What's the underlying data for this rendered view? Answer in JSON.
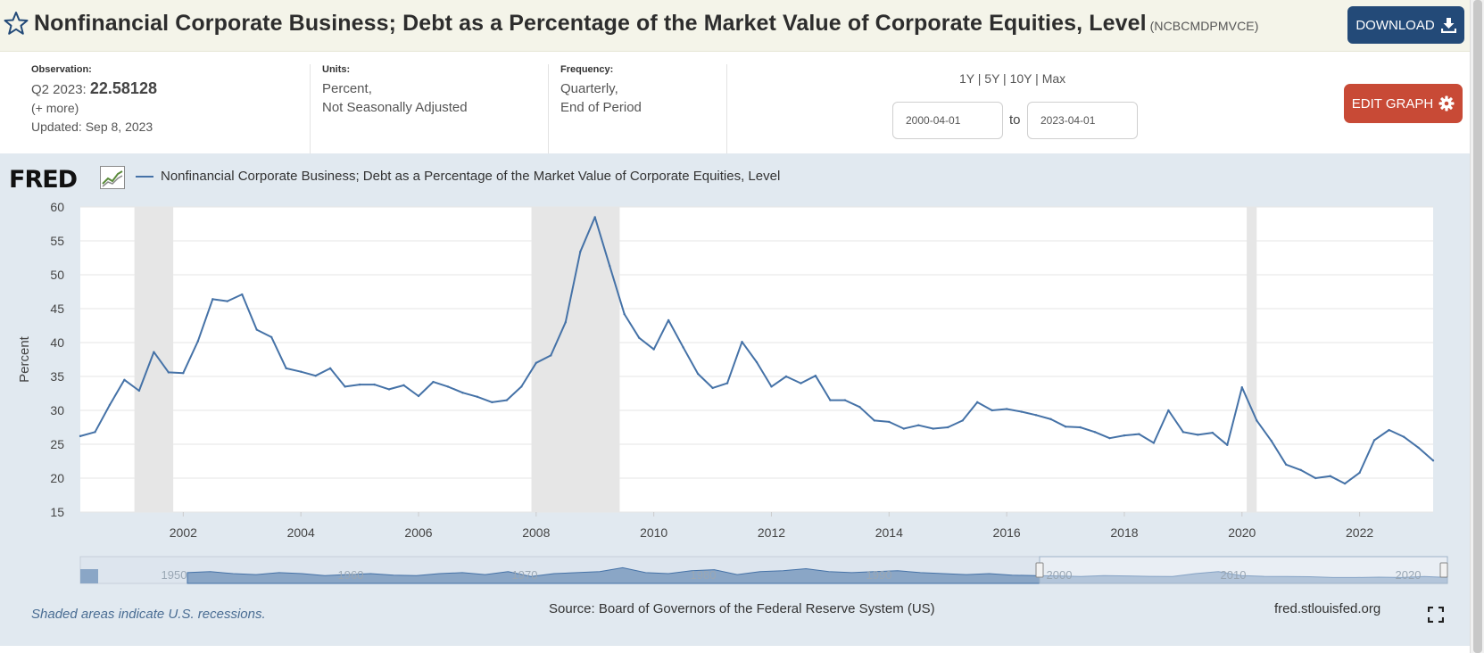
{
  "header": {
    "title": "Nonfinancial Corporate Business; Debt as a Percentage of the Market Value of Corporate Equities, Level",
    "series_id": "(NCBCMDPMVCE)",
    "download_label": "DOWNLOAD",
    "star_icon": "star-outline-icon",
    "download_icon": "download-icon"
  },
  "meta": {
    "observation_label": "Observation:",
    "observation_period": "Q2 2023:",
    "observation_value": "22.58128",
    "more_label": "(+ more)",
    "updated": "Updated: Sep 8, 2023",
    "units_label": "Units:",
    "units_line1": "Percent,",
    "units_line2": "Not Seasonally Adjusted",
    "frequency_label": "Frequency:",
    "frequency_line1": "Quarterly,",
    "frequency_line2": "End of Period"
  },
  "range": {
    "links": [
      "1Y",
      "5Y",
      "10Y",
      "Max"
    ],
    "start_date": "2000-04-01",
    "to_label": "to",
    "end_date": "2023-04-01"
  },
  "edit_graph_label": "EDIT GRAPH",
  "edit_graph_icon": "gear-icon",
  "fred_logo_text": "FRED",
  "footer": {
    "recession_note": "Shaded areas indicate U.S. recessions.",
    "source": "Source: Board of Governors of the Federal Reserve System (US)",
    "url": "fred.stlouisfed.org",
    "fullscreen_icon": "fullscreen-icon"
  },
  "colors": {
    "series_line": "#4572a7",
    "recession_shade": "#e6e6e6",
    "plot_bg": "#ffffff",
    "chart_bg": "#e1e9f0",
    "download_btn": "#234a78",
    "edit_btn": "#c84a36"
  },
  "chart_data": {
    "type": "line",
    "title": "",
    "xlabel": "",
    "ylabel": "Percent",
    "ylim": [
      15,
      60
    ],
    "yticks": [
      15,
      20,
      25,
      30,
      35,
      40,
      45,
      50,
      55,
      60
    ],
    "xlim": [
      2000.25,
      2023.25
    ],
    "xticks": [
      2002,
      2004,
      2006,
      2008,
      2010,
      2012,
      2014,
      2016,
      2018,
      2020,
      2022
    ],
    "grid": true,
    "legend_position": "top-left",
    "recessions": [
      [
        2001.17,
        2001.83
      ],
      [
        2007.92,
        2009.42
      ],
      [
        2020.08,
        2020.25
      ]
    ],
    "navigator_labels": [
      "1950",
      "1960",
      "1970",
      "1980",
      "1990",
      "2000",
      "2010",
      "2020"
    ],
    "series": [
      {
        "name": "Nonfinancial Corporate Business; Debt as a Percentage of the Market Value of Corporate Equities, Level",
        "x": [
          2000.25,
          2000.5,
          2000.75,
          2001.0,
          2001.25,
          2001.5,
          2001.75,
          2002.0,
          2002.25,
          2002.5,
          2002.75,
          2003.0,
          2003.25,
          2003.5,
          2003.75,
          2004.0,
          2004.25,
          2004.5,
          2004.75,
          2005.0,
          2005.25,
          2005.5,
          2005.75,
          2006.0,
          2006.25,
          2006.5,
          2006.75,
          2007.0,
          2007.25,
          2007.5,
          2007.75,
          2008.0,
          2008.25,
          2008.5,
          2008.75,
          2009.0,
          2009.25,
          2009.5,
          2009.75,
          2010.0,
          2010.25,
          2010.5,
          2010.75,
          2011.0,
          2011.25,
          2011.5,
          2011.75,
          2012.0,
          2012.25,
          2012.5,
          2012.75,
          2013.0,
          2013.25,
          2013.5,
          2013.75,
          2014.0,
          2014.25,
          2014.5,
          2014.75,
          2015.0,
          2015.25,
          2015.5,
          2015.75,
          2016.0,
          2016.25,
          2016.5,
          2016.75,
          2017.0,
          2017.25,
          2017.5,
          2017.75,
          2018.0,
          2018.25,
          2018.5,
          2018.75,
          2019.0,
          2019.25,
          2019.5,
          2019.75,
          2020.0,
          2020.25,
          2020.5,
          2020.75,
          2021.0,
          2021.25,
          2021.5,
          2021.75,
          2022.0,
          2022.25,
          2022.5,
          2022.75,
          2023.0,
          2023.25
        ],
        "values": [
          26.2,
          26.8,
          30.8,
          34.5,
          32.9,
          38.6,
          35.6,
          35.5,
          40.2,
          46.4,
          46.1,
          47.1,
          41.9,
          40.8,
          36.2,
          35.7,
          35.1,
          36.2,
          33.5,
          33.8,
          33.8,
          33.1,
          33.7,
          32.1,
          34.2,
          33.5,
          32.6,
          32.0,
          31.2,
          31.5,
          33.5,
          37.0,
          38.1,
          43.0,
          53.4,
          58.5,
          51.3,
          44.2,
          40.7,
          39.0,
          43.3,
          39.3,
          35.4,
          33.3,
          34.0,
          40.1,
          37.1,
          33.5,
          35.0,
          34.0,
          35.1,
          31.5,
          31.5,
          30.5,
          28.5,
          28.3,
          27.3,
          27.8,
          27.3,
          27.5,
          28.5,
          31.2,
          30.0,
          30.2,
          29.8,
          29.3,
          28.7,
          27.6,
          27.5,
          26.8,
          25.9,
          26.3,
          26.5,
          25.2,
          30.0,
          26.8,
          26.4,
          26.7,
          24.9,
          33.4,
          28.5,
          25.5,
          22.0,
          21.2,
          20.0,
          20.3,
          19.2,
          20.8,
          25.6,
          27.1,
          26.1,
          24.5,
          22.6
        ]
      }
    ]
  }
}
